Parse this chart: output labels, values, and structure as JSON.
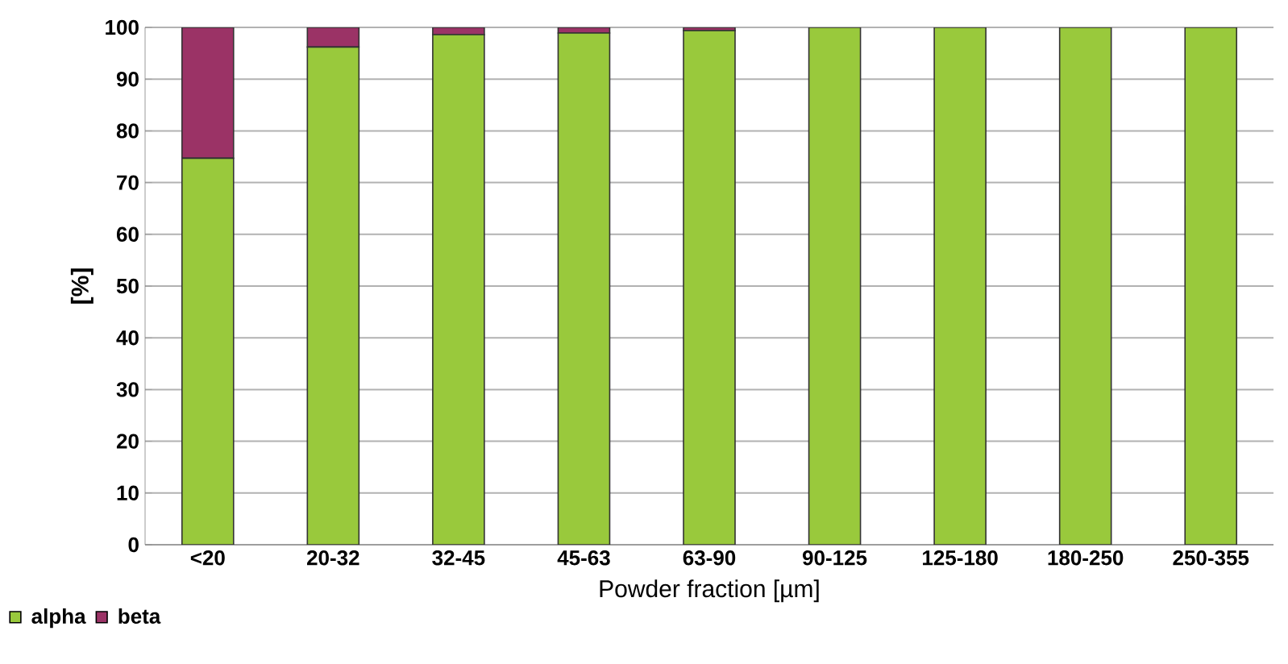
{
  "chart_data": {
    "type": "bar",
    "stacked": true,
    "xlabel": "Powder fraction [µm]",
    "ylabel": "[%]",
    "categories": [
      "<20",
      "20-32",
      "32-45",
      "45-63",
      "63-90",
      "90-125",
      "125-180",
      "180-250",
      "250-355"
    ],
    "series": [
      {
        "name": "alpha",
        "color": "#99c93c",
        "values": [
          74.7,
          96.2,
          98.6,
          98.9,
          99.4,
          100,
          100,
          100,
          100
        ]
      },
      {
        "name": "beta",
        "color": "#9b3366",
        "values": [
          25.3,
          3.8,
          1.4,
          1.1,
          0.6,
          0,
          0,
          0,
          0
        ]
      }
    ],
    "ylim": [
      0,
      100
    ],
    "yticks": [
      0,
      10,
      20,
      30,
      40,
      50,
      60,
      70,
      80,
      90,
      100
    ],
    "grid": "y",
    "legend": "bottom left"
  }
}
